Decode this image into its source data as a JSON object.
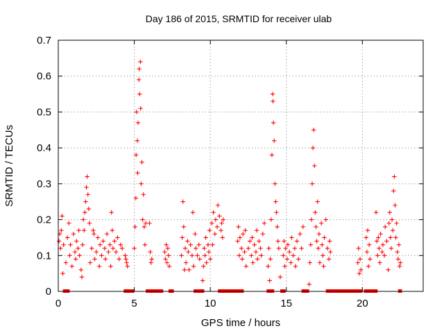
{
  "chart_data": {
    "type": "scatter",
    "title": "Day 186 of 2015, SRMTID for receiver ulab",
    "xlabel": "GPS time / hours",
    "ylabel": "SRMTID / TECUs",
    "xlim": [
      0,
      24
    ],
    "ylim": [
      0,
      0.7
    ],
    "x_ticks": [
      0,
      5,
      10,
      15,
      20
    ],
    "x_tick_labels": [
      "0",
      "5",
      "10",
      "15",
      "20"
    ],
    "y_ticks": [
      0,
      0.1,
      0.2,
      0.3,
      0.4,
      0.5,
      0.6,
      0.7
    ],
    "y_tick_labels": [
      "0",
      "0.1",
      "0.2",
      "0.3",
      "0.4",
      "0.5",
      "0.6",
      "0.7"
    ],
    "grid": true,
    "marker": "+",
    "marker_color": "#ff0000",
    "series": [
      {
        "name": "SRMTID",
        "points": [
          [
            0.05,
            0.14
          ],
          [
            0.1,
            0.16
          ],
          [
            0.15,
            0.12
          ],
          [
            0.2,
            0.17
          ],
          [
            0.25,
            0.21
          ],
          [
            0.3,
            0.05
          ],
          [
            0.35,
            0.13
          ],
          [
            0.5,
            0.08
          ],
          [
            0.6,
            0.15
          ],
          [
            0.7,
            0.19
          ],
          [
            0.75,
            0.1
          ],
          [
            0.8,
            0.13
          ],
          [
            0.9,
            0.07
          ],
          [
            1.0,
            0.16
          ],
          [
            1.1,
            0.11
          ],
          [
            1.15,
            0.09
          ],
          [
            1.2,
            0.14
          ],
          [
            1.3,
            0.12
          ],
          [
            1.35,
            0.17
          ],
          [
            1.4,
            0.1
          ],
          [
            1.5,
            0.06
          ],
          [
            1.55,
            0.04
          ],
          [
            1.6,
            0.13
          ],
          [
            1.65,
            0.2
          ],
          [
            1.7,
            0.17
          ],
          [
            1.75,
            0.22
          ],
          [
            1.8,
            0.25
          ],
          [
            1.85,
            0.29
          ],
          [
            1.9,
            0.32
          ],
          [
            1.95,
            0.27
          ],
          [
            2.0,
            0.23
          ],
          [
            2.05,
            0.19
          ],
          [
            2.1,
            0.08
          ],
          [
            2.2,
            0.12
          ],
          [
            2.3,
            0.17
          ],
          [
            2.35,
            0.16
          ],
          [
            2.4,
            0.09
          ],
          [
            2.5,
            0.11
          ],
          [
            2.6,
            0.15
          ],
          [
            2.7,
            0.07
          ],
          [
            2.75,
            0.13
          ],
          [
            2.85,
            0.1
          ],
          [
            2.95,
            0.14
          ],
          [
            3.05,
            0.12
          ],
          [
            3.1,
            0.09
          ],
          [
            3.2,
            0.16
          ],
          [
            3.3,
            0.11
          ],
          [
            3.4,
            0.13
          ],
          [
            3.45,
            0.07
          ],
          [
            3.5,
            0.22
          ],
          [
            3.55,
            0.17
          ],
          [
            3.6,
            0.12
          ],
          [
            3.7,
            0.14
          ],
          [
            3.8,
            0.11
          ],
          [
            3.9,
            0.15
          ],
          [
            4.0,
            0.09
          ],
          [
            4.1,
            0.13
          ],
          [
            4.2,
            0.12
          ],
          [
            4.4,
            0.1
          ],
          [
            4.45,
            0.09
          ],
          [
            4.5,
            0.08
          ],
          [
            4.55,
            0.07
          ],
          [
            5.0,
            0.12
          ],
          [
            5.05,
            0.18
          ],
          [
            5.1,
            0.26
          ],
          [
            5.12,
            0.38
          ],
          [
            5.15,
            0.5
          ],
          [
            5.2,
            0.42
          ],
          [
            5.22,
            0.33
          ],
          [
            5.25,
            0.47
          ],
          [
            5.3,
            0.59
          ],
          [
            5.32,
            0.62
          ],
          [
            5.35,
            0.55
          ],
          [
            5.4,
            0.64
          ],
          [
            5.42,
            0.51
          ],
          [
            5.45,
            0.3
          ],
          [
            5.5,
            0.36
          ],
          [
            5.55,
            0.2
          ],
          [
            5.6,
            0.27
          ],
          [
            5.65,
            0.18
          ],
          [
            5.7,
            0.13
          ],
          [
            5.75,
            0.19
          ],
          [
            6.0,
            0.19
          ],
          [
            6.05,
            0.11
          ],
          [
            6.1,
            0.08
          ],
          [
            6.15,
            0.09
          ],
          [
            7.0,
            0.11
          ],
          [
            7.05,
            0.09
          ],
          [
            7.1,
            0.13
          ],
          [
            7.15,
            0.08
          ],
          [
            7.2,
            0.12
          ],
          [
            7.25,
            0.1
          ],
          [
            7.3,
            0.07
          ],
          [
            8.1,
            0.1
          ],
          [
            8.15,
            0.15
          ],
          [
            8.2,
            0.25
          ],
          [
            8.25,
            0.18
          ],
          [
            8.3,
            0.06
          ],
          [
            8.35,
            0.12
          ],
          [
            8.4,
            0.08
          ],
          [
            8.5,
            0.14
          ],
          [
            8.55,
            0.11
          ],
          [
            8.6,
            0.06
          ],
          [
            8.7,
            0.13
          ],
          [
            8.8,
            0.1
          ],
          [
            8.85,
            0.22
          ],
          [
            8.9,
            0.07
          ],
          [
            9.0,
            0.16
          ],
          [
            9.05,
            0.12
          ],
          [
            9.15,
            0.1
          ],
          [
            9.25,
            0.13
          ],
          [
            9.3,
            0.09
          ],
          [
            9.5,
            0.03
          ],
          [
            9.55,
            0.07
          ],
          [
            9.6,
            0.12
          ],
          [
            9.65,
            0.1
          ],
          [
            9.7,
            0.15
          ],
          [
            9.75,
            0.08
          ],
          [
            9.85,
            0.13
          ],
          [
            9.9,
            0.11
          ],
          [
            9.95,
            0.17
          ],
          [
            10.0,
            0.09
          ],
          [
            10.1,
            0.19
          ],
          [
            10.15,
            0.13
          ],
          [
            10.2,
            0.22
          ],
          [
            10.3,
            0.16
          ],
          [
            10.35,
            0.2
          ],
          [
            10.45,
            0.18
          ],
          [
            10.5,
            0.24
          ],
          [
            10.6,
            0.21
          ],
          [
            10.7,
            0.17
          ],
          [
            10.75,
            0.19
          ],
          [
            10.8,
            0.15
          ],
          [
            10.85,
            0.2
          ],
          [
            11.8,
            0.14
          ],
          [
            11.85,
            0.18
          ],
          [
            11.9,
            0.1
          ],
          [
            11.95,
            0.15
          ],
          [
            12.05,
            0.12
          ],
          [
            12.1,
            0.09
          ],
          [
            12.15,
            0.16
          ],
          [
            12.25,
            0.11
          ],
          [
            12.3,
            0.17
          ],
          [
            12.35,
            0.07
          ],
          [
            12.5,
            0.12
          ],
          [
            12.6,
            0.14
          ],
          [
            12.7,
            0.1
          ],
          [
            12.75,
            0.15
          ],
          [
            12.8,
            0.08
          ],
          [
            12.9,
            0.13
          ],
          [
            13.0,
            0.11
          ],
          [
            13.05,
            0.17
          ],
          [
            13.1,
            0.09
          ],
          [
            13.2,
            0.14
          ],
          [
            13.3,
            0.12
          ],
          [
            13.35,
            0.1
          ],
          [
            13.45,
            0.16
          ],
          [
            13.55,
            0.19
          ],
          [
            13.8,
            0.07
          ],
          [
            13.85,
            0.12
          ],
          [
            13.9,
            0.03
          ],
          [
            13.95,
            0.09
          ],
          [
            14.0,
            0.2
          ],
          [
            14.05,
            0.38
          ],
          [
            14.1,
            0.55
          ],
          [
            14.12,
            0.53
          ],
          [
            14.15,
            0.47
          ],
          [
            14.2,
            0.42
          ],
          [
            14.25,
            0.3
          ],
          [
            14.3,
            0.25
          ],
          [
            14.35,
            0.22
          ],
          [
            14.4,
            0.18
          ],
          [
            14.45,
            0.14
          ],
          [
            14.5,
            0.12
          ],
          [
            14.6,
            0.04
          ],
          [
            14.8,
            0.1
          ],
          [
            14.85,
            0.14
          ],
          [
            14.9,
            0.07
          ],
          [
            14.95,
            0.12
          ],
          [
            15.05,
            0.09
          ],
          [
            15.1,
            0.13
          ],
          [
            15.2,
            0.11
          ],
          [
            15.3,
            0.08
          ],
          [
            15.35,
            0.15
          ],
          [
            15.45,
            0.1
          ],
          [
            15.55,
            0.12
          ],
          [
            15.6,
            0.07
          ],
          [
            15.7,
            0.14
          ],
          [
            15.8,
            0.09
          ],
          [
            15.9,
            0.16
          ],
          [
            16.0,
            0.12
          ],
          [
            16.1,
            0.18
          ],
          [
            16.5,
            0.02
          ],
          [
            16.55,
            0.08
          ],
          [
            16.6,
            0.13
          ],
          [
            16.65,
            0.2
          ],
          [
            16.7,
            0.3
          ],
          [
            16.75,
            0.4
          ],
          [
            16.8,
            0.45
          ],
          [
            16.85,
            0.35
          ],
          [
            16.9,
            0.22
          ],
          [
            16.95,
            0.18
          ],
          [
            17.0,
            0.14
          ],
          [
            17.05,
            0.25
          ],
          [
            17.1,
            0.12
          ],
          [
            17.15,
            0.16
          ],
          [
            17.2,
            0.08
          ],
          [
            17.3,
            0.19
          ],
          [
            17.35,
            0.13
          ],
          [
            17.4,
            0.1
          ],
          [
            17.45,
            0.07
          ],
          [
            17.5,
            0.15
          ],
          [
            17.6,
            0.2
          ],
          [
            17.7,
            0.12
          ],
          [
            17.8,
            0.09
          ],
          [
            17.85,
            0.14
          ],
          [
            17.9,
            0.11
          ],
          [
            19.7,
            0.08
          ],
          [
            19.75,
            0.12
          ],
          [
            19.8,
            0.05
          ],
          [
            19.85,
            0.09
          ],
          [
            19.9,
            0.06
          ],
          [
            20.25,
            0.15
          ],
          [
            20.3,
            0.11
          ],
          [
            20.35,
            0.17
          ],
          [
            20.4,
            0.07
          ],
          [
            20.45,
            0.13
          ],
          [
            20.5,
            0.09
          ],
          [
            20.9,
            0.22
          ],
          [
            20.95,
            0.14
          ],
          [
            21.0,
            0.1
          ],
          [
            21.05,
            0.15
          ],
          [
            21.1,
            0.12
          ],
          [
            21.15,
            0.08
          ],
          [
            21.2,
            0.16
          ],
          [
            21.3,
            0.11
          ],
          [
            21.35,
            0.13
          ],
          [
            21.45,
            0.1
          ],
          [
            21.5,
            0.18
          ],
          [
            21.6,
            0.14
          ],
          [
            21.7,
            0.06
          ],
          [
            21.75,
            0.19
          ],
          [
            21.8,
            0.22
          ],
          [
            21.85,
            0.15
          ],
          [
            21.9,
            0.12
          ],
          [
            21.95,
            0.2
          ],
          [
            22.0,
            0.17
          ],
          [
            22.05,
            0.28
          ],
          [
            22.1,
            0.32
          ],
          [
            22.15,
            0.24
          ],
          [
            22.2,
            0.15
          ],
          [
            22.25,
            0.19
          ],
          [
            22.3,
            0.11
          ],
          [
            22.35,
            0.09
          ],
          [
            22.4,
            0.13
          ],
          [
            22.45,
            0.07
          ],
          [
            22.5,
            0.08
          ]
        ]
      }
    ],
    "zero_level_segments": [
      [
        0.3,
        0.75
      ],
      [
        4.3,
        5.0
      ],
      [
        5.75,
        6.9
      ],
      [
        7.25,
        7.6
      ],
      [
        8.9,
        9.6
      ],
      [
        10.5,
        12.2
      ],
      [
        13.7,
        14.2
      ],
      [
        14.6,
        14.95
      ],
      [
        16.0,
        16.5
      ],
      [
        17.6,
        20.0
      ],
      [
        20.1,
        21.0
      ],
      [
        22.35,
        22.6
      ]
    ]
  }
}
